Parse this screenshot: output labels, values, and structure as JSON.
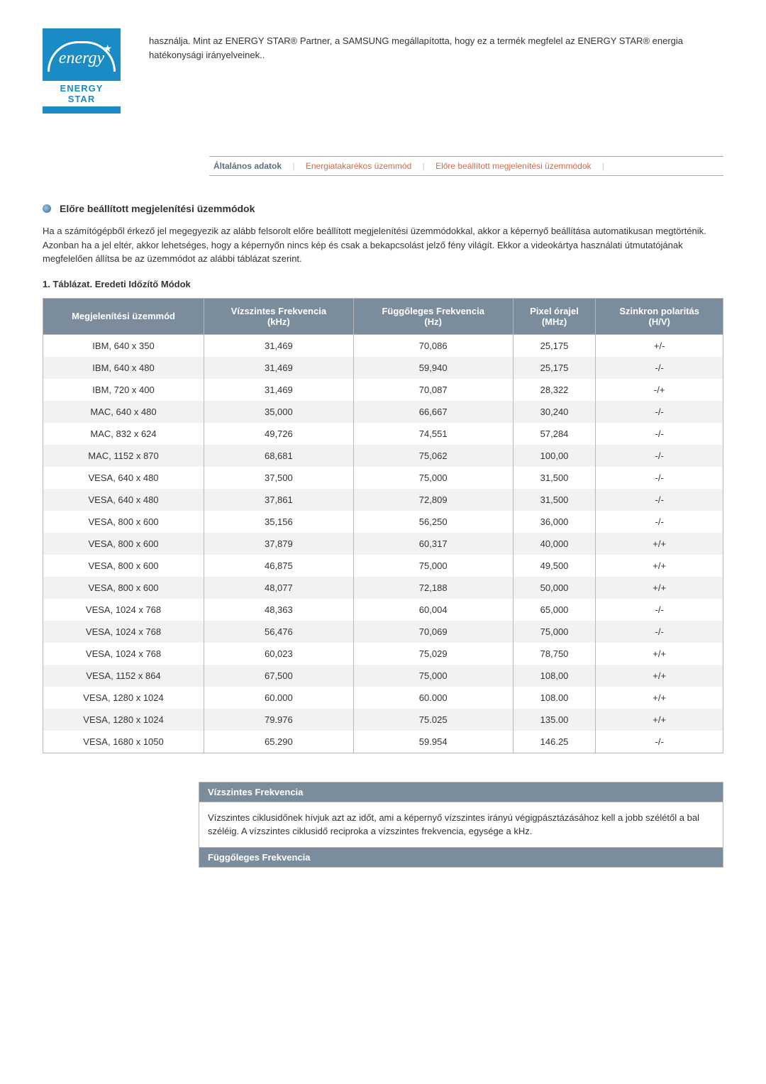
{
  "logo": {
    "script_text": "energy",
    "bar_text": "ENERGY STAR",
    "bg_color": "#1a8bc4"
  },
  "top_text": "használja. Mint az ENERGY STAR® Partner, a SAMSUNG megállapította, hogy ez a termék megfelel az ENERGY STAR® energia hatékonysági irányelveinek..",
  "tabs": {
    "items": [
      {
        "label": "Általános adatok",
        "active": true
      },
      {
        "label": "Energiatakarékos üzemmód",
        "active": false
      },
      {
        "label": "Előre beállított megjelenítési üzemmódok",
        "active": false
      }
    ]
  },
  "section": {
    "title": "Előre beállított megjelenítési üzemmódok",
    "intro": "Ha a számítógépből érkező jel megegyezik az alább felsorolt előre beállított megjelenítési üzemmódokkal, akkor a képernyő beállítása automatikusan megtörténik. Azonban ha a jel eltér, akkor lehetséges, hogy a képernyőn nincs kép és csak a bekapcsolást jelző fény világít. Ekkor a videokártya használati útmutatójának megfelelően állítsa be az üzemmódot az alábbi táblázat szerint.",
    "table_caption": "1. Táblázat. Eredeti Időzítő Módok"
  },
  "table": {
    "header_bg": "#7b8d9c",
    "row_alt_bg": "#f0f2f4",
    "border_color": "#b8b8b8",
    "columns": [
      "Megjelenítési üzemmód",
      "Vízszintes Frekvencia (kHz)",
      "Függőleges Frekvencia (Hz)",
      "Pixel órajel (MHz)",
      "Szinkron polaritás (H/V)"
    ],
    "rows": [
      [
        "IBM, 640 x 350",
        "31,469",
        "70,086",
        "25,175",
        "+/-"
      ],
      [
        "IBM, 640 x 480",
        "31,469",
        "59,940",
        "25,175",
        "-/-"
      ],
      [
        "IBM, 720 x 400",
        "31,469",
        "70,087",
        "28,322",
        "-/+"
      ],
      [
        "MAC, 640 x 480",
        "35,000",
        "66,667",
        "30,240",
        "-/-"
      ],
      [
        "MAC, 832 x 624",
        "49,726",
        "74,551",
        "57,284",
        "-/-"
      ],
      [
        "MAC, 1152 x 870",
        "68,681",
        "75,062",
        "100,00",
        "-/-"
      ],
      [
        "VESA, 640 x 480",
        "37,500",
        "75,000",
        "31,500",
        "-/-"
      ],
      [
        "VESA, 640 x 480",
        "37,861",
        "72,809",
        "31,500",
        "-/-"
      ],
      [
        "VESA, 800 x 600",
        "35,156",
        "56,250",
        "36,000",
        "-/-"
      ],
      [
        "VESA, 800 x 600",
        "37,879",
        "60,317",
        "40,000",
        "+/+"
      ],
      [
        "VESA, 800 x 600",
        "46,875",
        "75,000",
        "49,500",
        "+/+"
      ],
      [
        "VESA, 800 x 600",
        "48,077",
        "72,188",
        "50,000",
        "+/+"
      ],
      [
        "VESA, 1024 x 768",
        "48,363",
        "60,004",
        "65,000",
        "-/-"
      ],
      [
        "VESA, 1024 x 768",
        "56,476",
        "70,069",
        "75,000",
        "-/-"
      ],
      [
        "VESA, 1024 x 768",
        "60,023",
        "75,029",
        "78,750",
        "+/+"
      ],
      [
        "VESA, 1152 x 864",
        "67,500",
        "75,000",
        "108,00",
        "+/+"
      ],
      [
        "VESA, 1280 x 1024",
        "60.000",
        "60.000",
        "108.00",
        "+/+"
      ],
      [
        "VESA, 1280 x 1024",
        "79.976",
        "75.025",
        "135.00",
        "+/+"
      ],
      [
        "VESA, 1680 x 1050",
        "65.290",
        "59.954",
        "146.25",
        "-/-"
      ]
    ]
  },
  "definitions": [
    {
      "title": "Vízszintes Frekvencia",
      "body": "Vízszintes ciklusidőnek hívjuk azt az időt, ami a képernyő vízszintes irányú végigpásztázásához kell a jobb szélétől a bal széléig. A vízszintes ciklusidő reciproka a vízszintes frekvencia, egysége a kHz."
    },
    {
      "title": "Függőleges Frekvencia",
      "body": ""
    }
  ]
}
